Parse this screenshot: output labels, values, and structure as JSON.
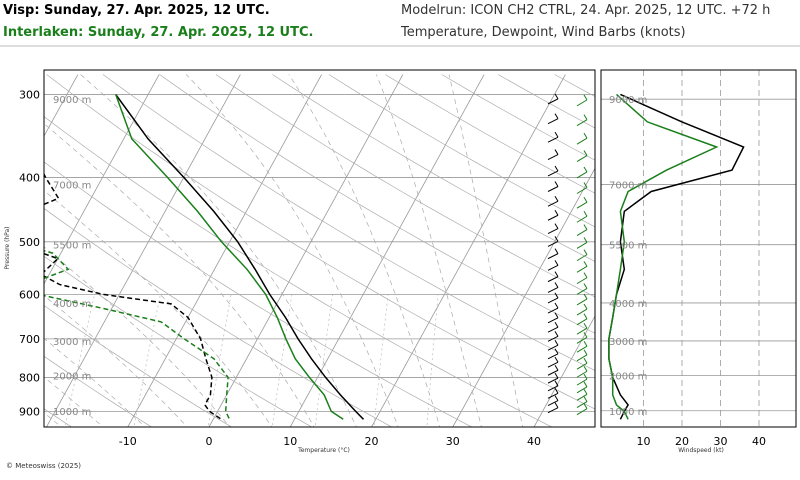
{
  "header": {
    "title_station1": "Visp: Sunday, 27. Apr. 2025, 12 UTC.",
    "title_station2": "Interlaken: Sunday, 27. Apr. 2025, 12 UTC.",
    "model_run": "Modelrun: ICON CH2 CTRL, 24. Apr. 2025, 12 UTC. +72 h",
    "description": "Temperature, Dewpoint, Wind Barbs (knots)"
  },
  "footer": {
    "copyright": "© Meteoswiss (2025)"
  },
  "colors": {
    "station1": "#000000",
    "station2": "#1a7f1a",
    "grid": "#999999"
  },
  "chart_data": [
    {
      "type": "line",
      "subtype": "skew-t",
      "xlabel": "Temperature (°C)",
      "ylabel": "Pressure (hPa)",
      "x_ticks": [
        -10,
        0,
        10,
        20,
        30,
        40
      ],
      "y_ticks": [
        300,
        400,
        500,
        600,
        700,
        800,
        900
      ],
      "y_scale": "log",
      "height_labels": [
        "1000 m",
        "2000 m",
        "3000 m",
        "4000 m",
        "5500 m",
        "7000 m",
        "9000 m"
      ],
      "height_pressures": [
        898,
        795,
        705,
        618,
        505,
        410,
        305
      ],
      "series": [
        {
          "name": "Visp",
          "temperature": [
            [
              300,
              -34
            ],
            [
              350,
              -27
            ],
            [
              400,
              -20
            ],
            [
              450,
              -14
            ],
            [
              500,
              -9
            ],
            [
              550,
              -5
            ],
            [
              600,
              -1.5
            ],
            [
              650,
              2
            ],
            [
              700,
              5
            ],
            [
              750,
              8
            ],
            [
              800,
              11
            ],
            [
              850,
              14
            ],
            [
              900,
              17
            ],
            [
              925,
              18.5
            ]
          ],
          "dewpoint": [
            [
              300,
              -55
            ],
            [
              330,
              -44
            ],
            [
              350,
              -42
            ],
            [
              400,
              -37
            ],
            [
              430,
              -34
            ],
            [
              450,
              -37
            ],
            [
              470,
              -42
            ],
            [
              500,
              -37
            ],
            [
              530,
              -30
            ],
            [
              560,
              -31
            ],
            [
              580,
              -28
            ],
            [
              600,
              -22
            ],
            [
              620,
              -13
            ],
            [
              650,
              -10
            ],
            [
              700,
              -7
            ],
            [
              750,
              -5
            ],
            [
              800,
              -3
            ],
            [
              850,
              -2
            ],
            [
              880,
              -2
            ],
            [
              900,
              -1
            ],
            [
              925,
              1
            ]
          ]
        },
        {
          "name": "Interlaken",
          "temperature": [
            [
              300,
              -34
            ],
            [
              350,
              -29
            ],
            [
              400,
              -22
            ],
            [
              450,
              -16
            ],
            [
              500,
              -11
            ],
            [
              550,
              -6
            ],
            [
              600,
              -2
            ],
            [
              650,
              1
            ],
            [
              700,
              3.5
            ],
            [
              750,
              6
            ],
            [
              800,
              9
            ],
            [
              850,
              12
            ],
            [
              900,
              14
            ],
            [
              925,
              16
            ]
          ],
          "dewpoint": [
            [
              300,
              -53
            ],
            [
              330,
              -47
            ],
            [
              350,
              -42
            ],
            [
              370,
              -43
            ],
            [
              400,
              -41
            ],
            [
              430,
              -43
            ],
            [
              460,
              -46
            ],
            [
              480,
              -41
            ],
            [
              500,
              -37
            ],
            [
              520,
              -31
            ],
            [
              550,
              -28
            ],
            [
              580,
              -32
            ],
            [
              600,
              -30
            ],
            [
              630,
              -21
            ],
            [
              660,
              -13
            ],
            [
              700,
              -9
            ],
            [
              750,
              -4
            ],
            [
              800,
              -1
            ],
            [
              850,
              0
            ],
            [
              900,
              1
            ],
            [
              925,
              2
            ]
          ]
        }
      ]
    },
    {
      "type": "line",
      "xlabel": "Windspeed (kt)",
      "x_ticks": [
        10,
        20,
        30,
        40
      ],
      "series": [
        {
          "name": "Visp",
          "speed": [
            [
              300,
              4
            ],
            [
              330,
              20
            ],
            [
              360,
              36
            ],
            [
              390,
              33
            ],
            [
              420,
              12
            ],
            [
              450,
              5
            ],
            [
              500,
              4
            ],
            [
              550,
              5
            ],
            [
              600,
              3
            ],
            [
              650,
              2
            ],
            [
              700,
              1
            ],
            [
              750,
              1
            ],
            [
              800,
              2
            ],
            [
              850,
              4
            ],
            [
              880,
              6
            ],
            [
              900,
              5
            ],
            [
              925,
              4
            ]
          ]
        },
        {
          "name": "Interlaken",
          "speed": [
            [
              300,
              3
            ],
            [
              330,
              11
            ],
            [
              360,
              29
            ],
            [
              390,
              16
            ],
            [
              420,
              6
            ],
            [
              450,
              4
            ],
            [
              500,
              5
            ],
            [
              550,
              4
            ],
            [
              600,
              3
            ],
            [
              650,
              2
            ],
            [
              700,
              1
            ],
            [
              750,
              1
            ],
            [
              800,
              2
            ],
            [
              850,
              2
            ],
            [
              880,
              3
            ],
            [
              900,
              5
            ],
            [
              925,
              6
            ]
          ]
        }
      ]
    }
  ]
}
